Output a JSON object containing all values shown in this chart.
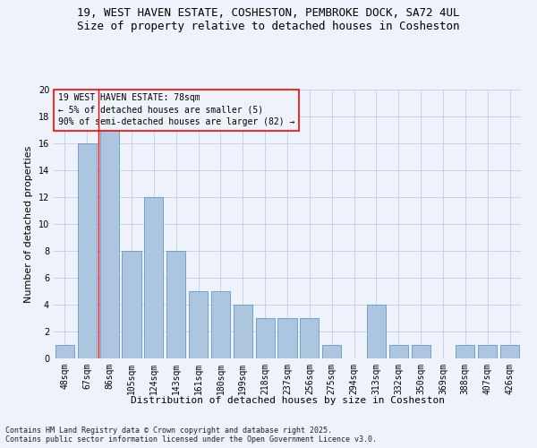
{
  "title_line1": "19, WEST HAVEN ESTATE, COSHESTON, PEMBROKE DOCK, SA72 4UL",
  "title_line2": "Size of property relative to detached houses in Cosheston",
  "xlabel": "Distribution of detached houses by size in Cosheston",
  "ylabel": "Number of detached properties",
  "categories": [
    "48sqm",
    "67sqm",
    "86sqm",
    "105sqm",
    "124sqm",
    "143sqm",
    "161sqm",
    "180sqm",
    "199sqm",
    "218sqm",
    "237sqm",
    "256sqm",
    "275sqm",
    "294sqm",
    "313sqm",
    "332sqm",
    "350sqm",
    "369sqm",
    "388sqm",
    "407sqm",
    "426sqm"
  ],
  "values": [
    1,
    16,
    17,
    8,
    12,
    8,
    5,
    5,
    4,
    3,
    3,
    3,
    1,
    0,
    4,
    1,
    1,
    0,
    1,
    1,
    1
  ],
  "bar_color": "#adc6e0",
  "bar_edge_color": "#6699cc",
  "ylim": [
    0,
    20
  ],
  "yticks": [
    0,
    2,
    4,
    6,
    8,
    10,
    12,
    14,
    16,
    18,
    20
  ],
  "annotation_text": "19 WEST HAVEN ESTATE: 78sqm\n← 5% of detached houses are smaller (5)\n90% of semi-detached houses are larger (82) →",
  "redline_x": 1.5,
  "footer_line1": "Contains HM Land Registry data © Crown copyright and database right 2025.",
  "footer_line2": "Contains public sector information licensed under the Open Government Licence v3.0.",
  "background_color": "#eef2fb",
  "grid_color": "#c8d0e8",
  "title_fontsize": 9,
  "subtitle_fontsize": 9,
  "axis_label_fontsize": 8,
  "tick_fontsize": 7,
  "annotation_fontsize": 7,
  "footer_fontsize": 6
}
